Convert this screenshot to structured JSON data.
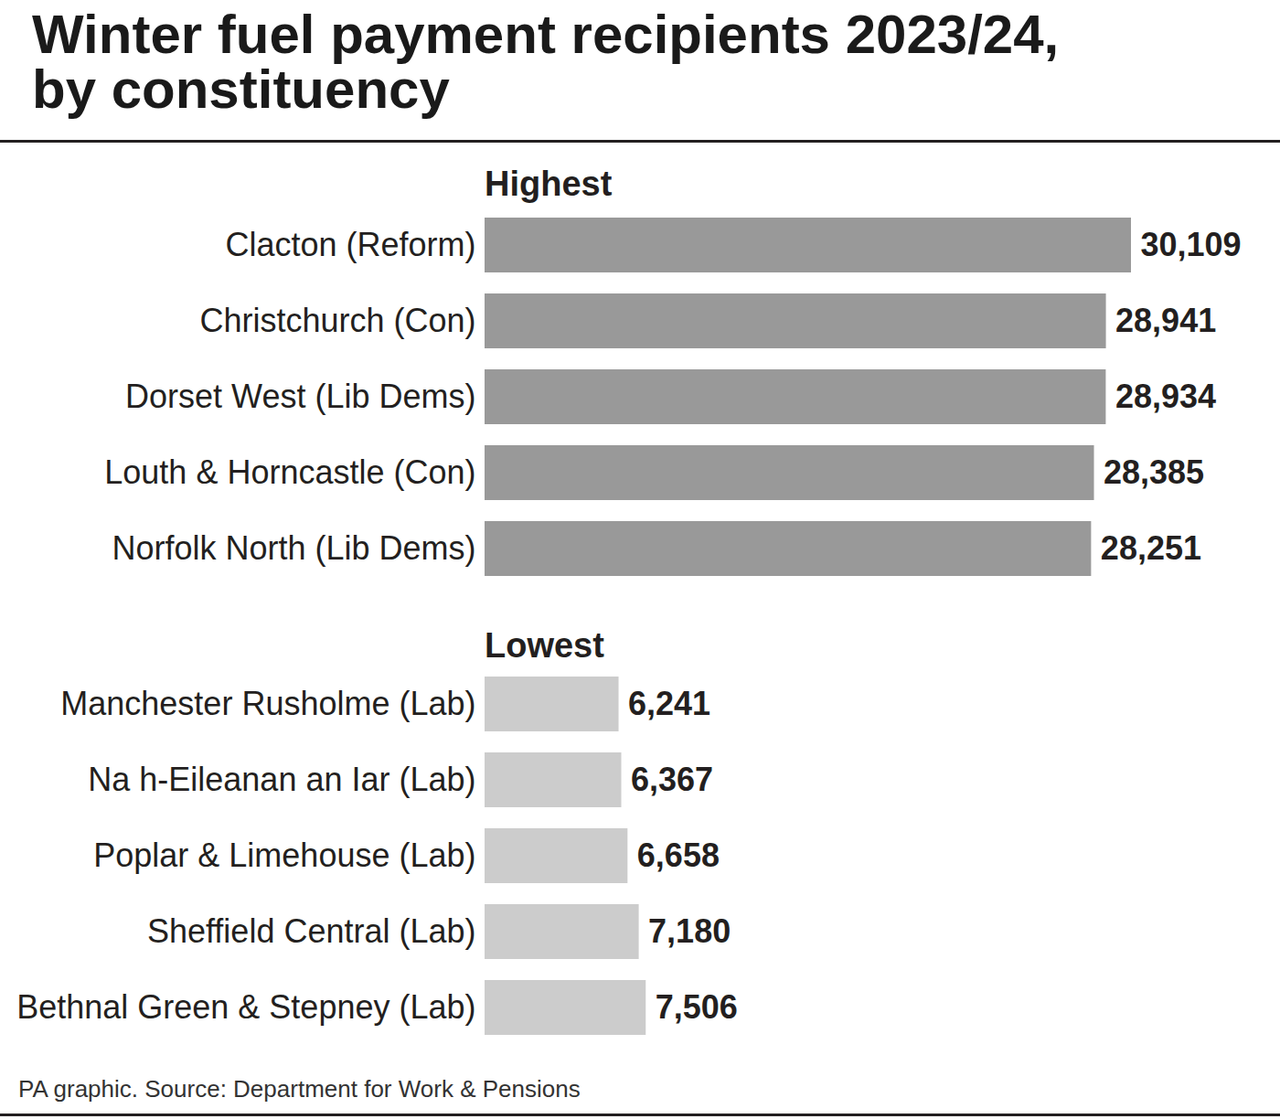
{
  "chart_data": [
    {
      "type": "bar",
      "orientation": "horizontal",
      "title": "Winter fuel payment recipients 2023/24, by constituency",
      "subtitle": "Highest",
      "categories": [
        "Clacton (Reform)",
        "Christchurch (Con)",
        "Dorset West (Lib Dems)",
        "Louth & Horncastle (Con)",
        "Norfolk North (Lib Dems)"
      ],
      "values": [
        30109,
        28941,
        28934,
        28385,
        28251
      ],
      "value_labels": [
        "30,109",
        "28,941",
        "28,934",
        "28,385",
        "28,251"
      ],
      "color": "#999999",
      "data_labels": true,
      "tick_labels": "y"
    },
    {
      "type": "bar",
      "orientation": "horizontal",
      "subtitle": "Lowest",
      "categories": [
        "Manchester Rusholme (Lab)",
        "Na h-Eileanan an Iar (Lab)",
        "Poplar & Limehouse (Lab)",
        "Sheffield Central (Lab)",
        "Bethnal Green & Stepney (Lab)"
      ],
      "values": [
        6241,
        6367,
        6658,
        7180,
        7506
      ],
      "value_labels": [
        "6,241",
        "6,367",
        "6,658",
        "7,180",
        "7,506"
      ],
      "color": "#cccccc",
      "data_labels": true,
      "tick_labels": "y",
      "caption": "PA graphic. Source: Department for Work & Pensions"
    }
  ]
}
